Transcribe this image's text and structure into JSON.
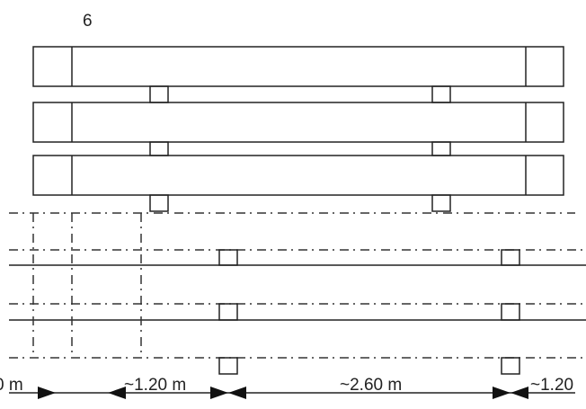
{
  "header": {
    "label": "6"
  },
  "dimensions": [
    {
      "label": "0 m"
    },
    {
      "label": "~1.20 m"
    },
    {
      "label": "~2.60 m"
    },
    {
      "label": "~1.20"
    }
  ]
}
